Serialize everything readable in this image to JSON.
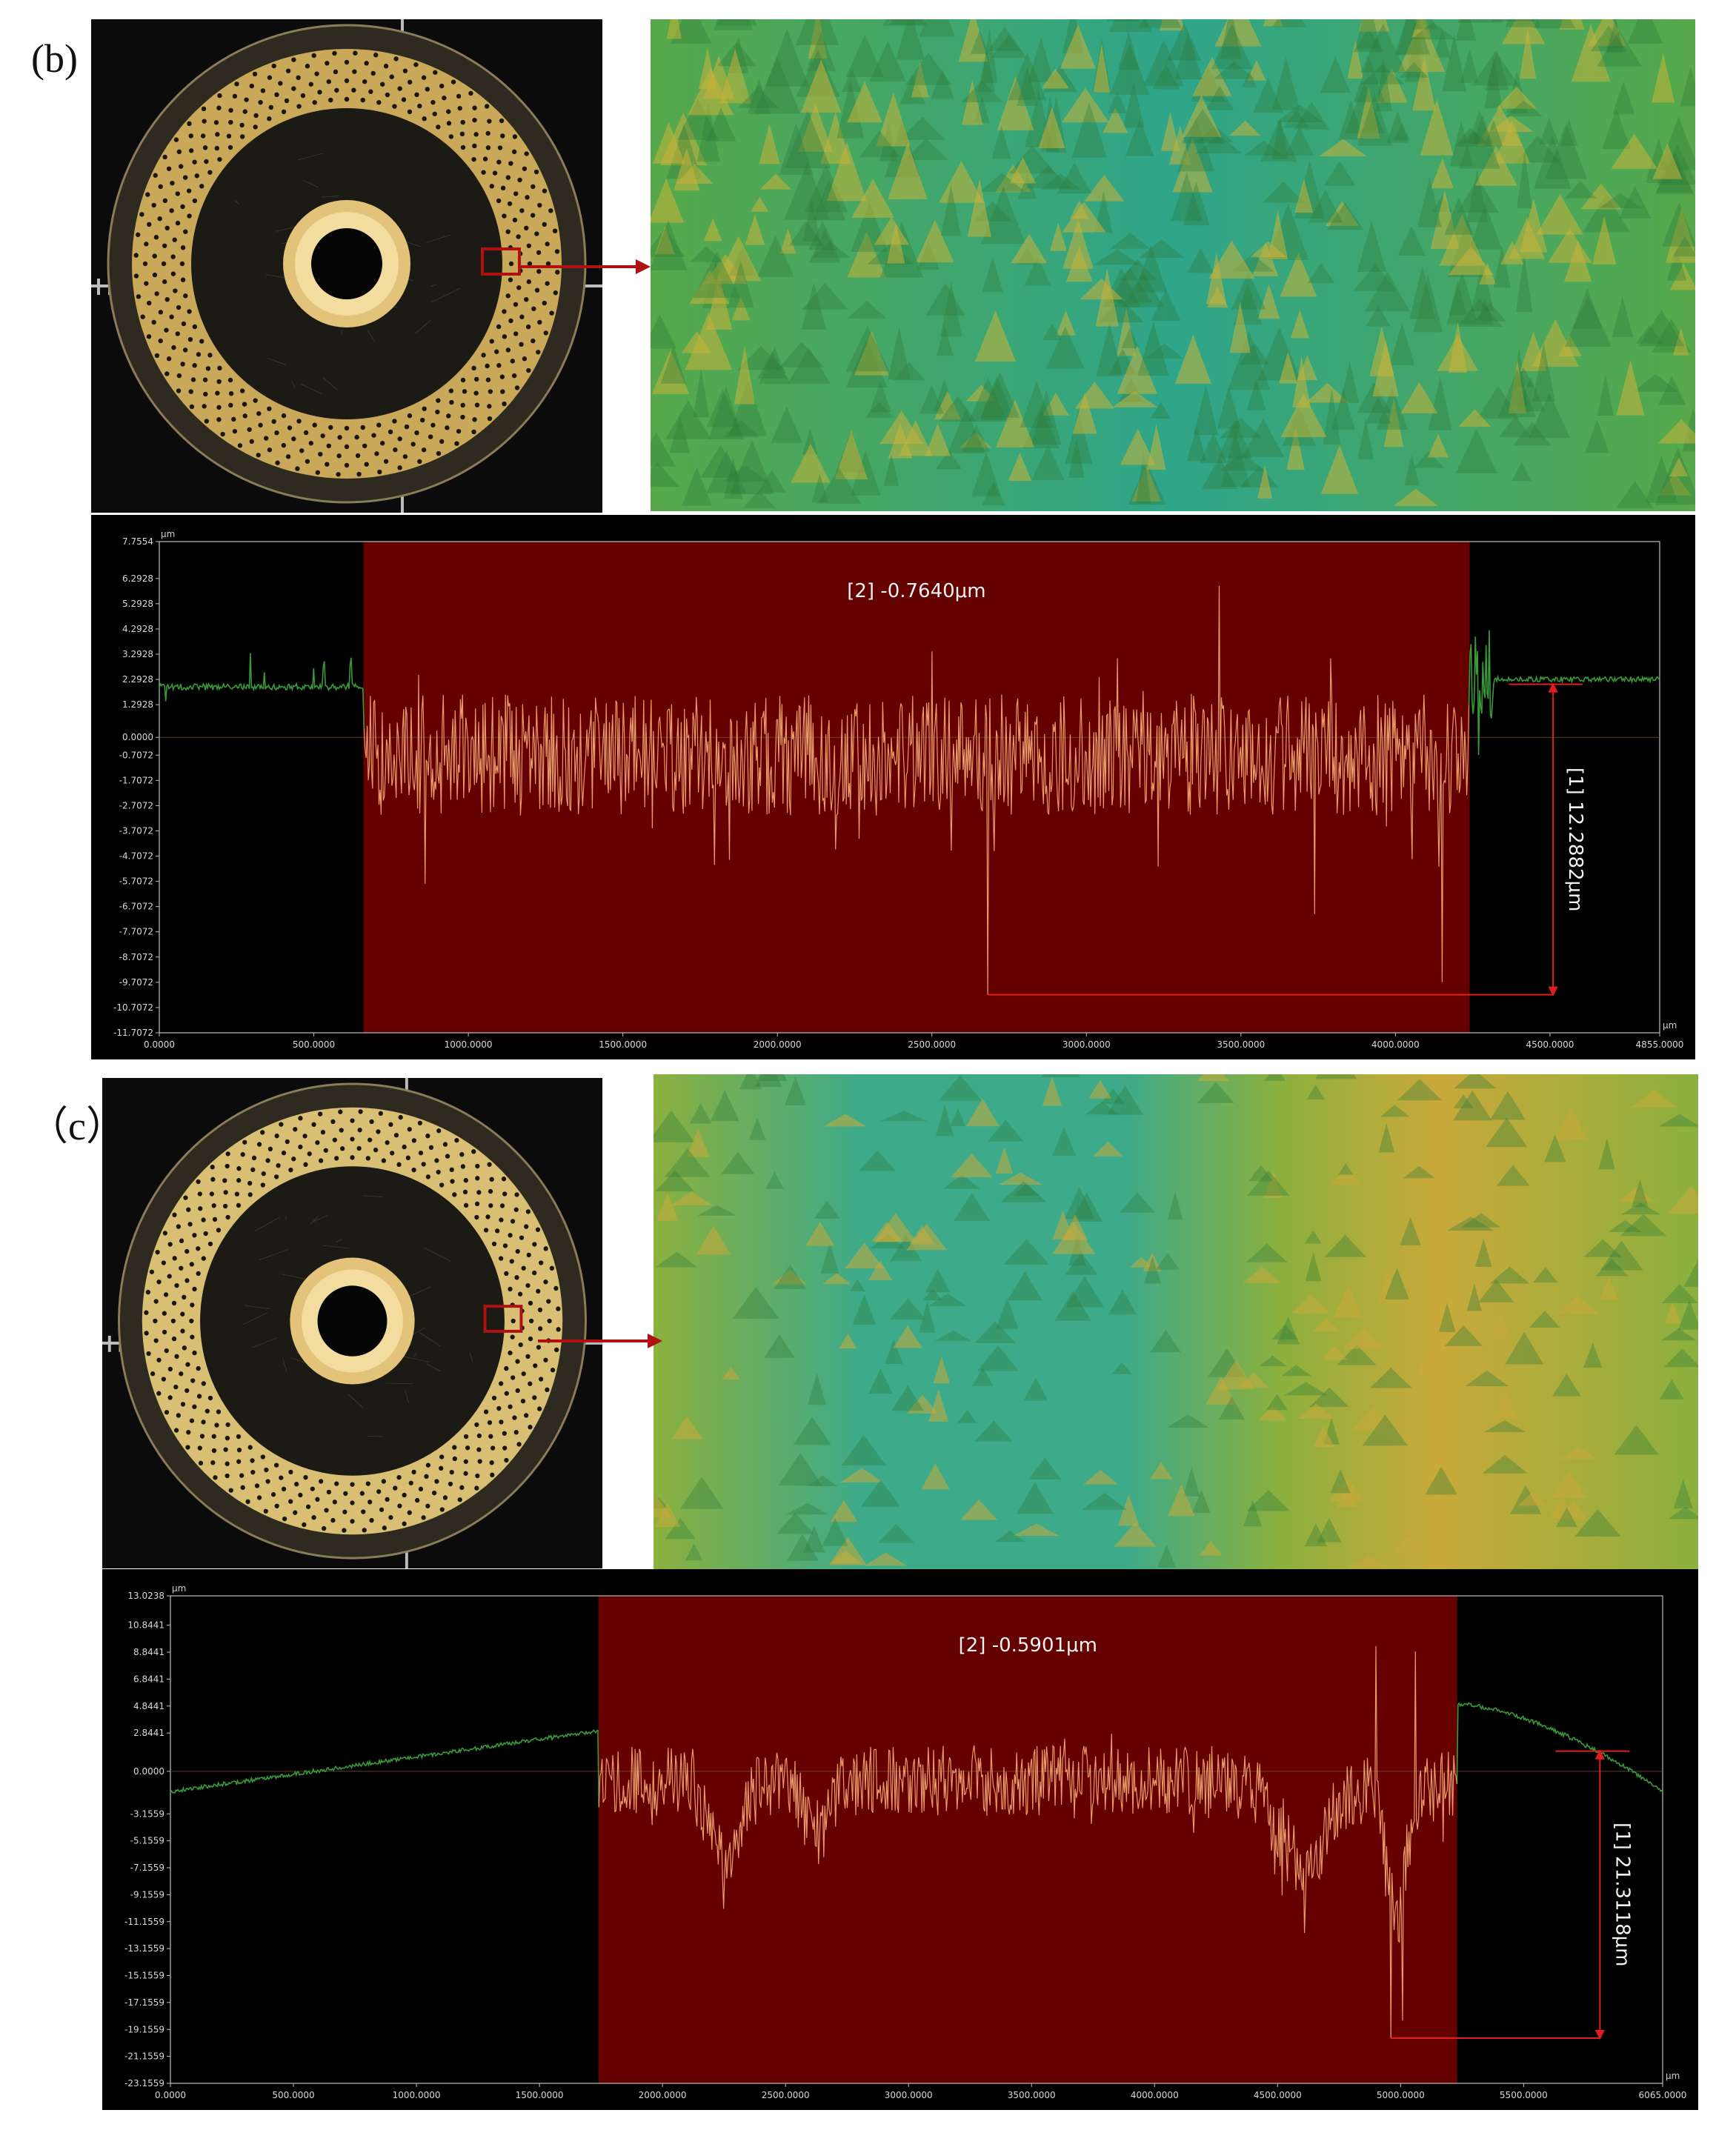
{
  "panels": [
    {
      "label": "(b)",
      "photo_colors": {
        "metal": "#c9a85a",
        "dark": "#1c1a14",
        "marker": "#b01010"
      },
      "surface_colors": {
        "base": "#56a84a",
        "high": "#c8b33a",
        "low": "#2fa58a"
      },
      "chart_data": {
        "type": "line",
        "unit_y": "μm",
        "unit_x": "μm",
        "x_ticks": [
          "0.0000",
          "500.0000",
          "1000.0000",
          "1500.0000",
          "2000.0000",
          "2500.0000",
          "3000.0000",
          "3500.0000",
          "4000.0000",
          "4500.0000",
          "4855.0000"
        ],
        "x_tick_values": [
          0,
          500,
          1000,
          1500,
          2000,
          2500,
          3000,
          3500,
          4000,
          4500,
          4855
        ],
        "xlim": [
          0,
          4855
        ],
        "y_ticks": [
          "7.7554",
          "6.2928",
          "5.2928",
          "4.2928",
          "3.2928",
          "2.2928",
          "1.2928",
          "0.0000",
          "-0.7072",
          "-1.7072",
          "-2.7072",
          "-3.7072",
          "-4.7072",
          "-5.7072",
          "-6.7072",
          "-7.7072",
          "-8.7072",
          "-9.7072",
          "-10.7072",
          "-11.7072"
        ],
        "y_tick_values": [
          7.7554,
          6.2928,
          5.2928,
          4.2928,
          3.2928,
          2.2928,
          1.2928,
          0,
          -0.7072,
          -1.7072,
          -2.7072,
          -3.7072,
          -4.7072,
          -5.7072,
          -6.7072,
          -7.7072,
          -8.7072,
          -9.7072,
          -10.7072,
          -11.7072
        ],
        "ylim": [
          -11.7072,
          7.7554
        ],
        "highlight_range": [
          660,
          4240
        ],
        "outer_level": 2.0,
        "outer_right_level": 2.3,
        "trend": "flat",
        "spikes": [
          {
            "x": 2680,
            "y": -10.2
          },
          {
            "x": 4150,
            "y": -9.7
          },
          {
            "x": 3430,
            "y": 6.0
          },
          {
            "x": 3740,
            "y": -7.0
          },
          {
            "x": 2500,
            "y": 3.4
          },
          {
            "x": 860,
            "y": -5.8
          },
          {
            "x": 4270,
            "y": -0.7
          }
        ],
        "annotation_mean": "[2] -0.7640μm",
        "annotation_range": "[1] 12.2882μm",
        "range_marker": {
          "x_start": 2680,
          "x_end": 4510,
          "y_low": -10.2,
          "y_high": 2.1
        },
        "colors": {
          "inside": "#e89a6a",
          "outside": "#3a9a3a",
          "band": "#650000",
          "marker": "#e01e1e"
        }
      }
    },
    {
      "label": "（c）",
      "photo_colors": {
        "metal": "#d8bf74",
        "dark": "#1c1a14",
        "marker": "#b01010"
      },
      "surface_colors": {
        "base": "#8cb03e",
        "high": "#c9a93a",
        "low": "#3daa8a"
      },
      "chart_data": {
        "type": "line",
        "unit_y": "μm",
        "unit_x": "μm",
        "x_ticks": [
          "0.0000",
          "500.0000",
          "1000.0000",
          "1500.0000",
          "2000.0000",
          "2500.0000",
          "3000.0000",
          "3500.0000",
          "4000.0000",
          "4500.0000",
          "5000.0000",
          "5500.0000",
          "6065.0000"
        ],
        "x_tick_values": [
          0,
          500,
          1000,
          1500,
          2000,
          2500,
          3000,
          3500,
          4000,
          4500,
          5000,
          5500,
          6065
        ],
        "xlim": [
          0,
          6065
        ],
        "y_ticks": [
          "13.0238",
          "10.8441",
          "8.8441",
          "6.8441",
          "4.8441",
          "2.8441",
          "0.0000",
          "-3.1559",
          "-5.1559",
          "-7.1559",
          "-9.1559",
          "-11.1559",
          "-13.1559",
          "-15.1559",
          "-17.1559",
          "-19.1559",
          "-21.1559",
          "-23.1559"
        ],
        "y_tick_values": [
          13.0238,
          10.8441,
          8.8441,
          6.8441,
          4.8441,
          2.8441,
          0,
          -3.1559,
          -5.1559,
          -7.1559,
          -9.1559,
          -11.1559,
          -13.1559,
          -15.1559,
          -17.1559,
          -19.1559,
          -21.1559,
          -23.1559
        ],
        "ylim": [
          -23.1559,
          13.0238
        ],
        "highlight_range": [
          1740,
          5230
        ],
        "outer_level": -1.5,
        "outer_right_level": 5.0,
        "trend": "ramp",
        "spikes": [
          {
            "x": 4960,
            "y": -19.8
          },
          {
            "x": 5010,
            "y": -18.5
          },
          {
            "x": 4900,
            "y": 9.3
          },
          {
            "x": 5060,
            "y": 8.9
          },
          {
            "x": 2250,
            "y": -10.2
          },
          {
            "x": 4520,
            "y": -9.2
          },
          {
            "x": 4610,
            "y": -12.0
          },
          {
            "x": 2620,
            "y": -5.5
          }
        ],
        "annotation_mean": "[2] -0.5901μm",
        "annotation_range": "[1] 21.3118μm",
        "range_marker": {
          "x_start": 4960,
          "x_end": 5810,
          "y_low": -19.8,
          "y_high": 1.5
        },
        "colors": {
          "inside": "#e89a6a",
          "outside": "#3a9a3a",
          "band": "#650000",
          "marker": "#e01e1e"
        }
      }
    }
  ]
}
